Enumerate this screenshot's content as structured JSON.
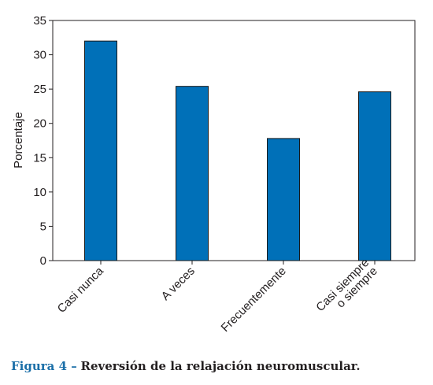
{
  "chart_data": {
    "type": "bar",
    "categories": [
      [
        "Casi nunca"
      ],
      [
        "A veces"
      ],
      [
        "Frecuentemente"
      ],
      [
        "Casi siempre",
        "o siempre"
      ]
    ],
    "values": [
      32,
      25.4,
      17.8,
      24.6
    ],
    "ylabel": "Porcentaje",
    "xlabel": "",
    "ylim": [
      0,
      35
    ],
    "yticks": [
      0,
      5,
      10,
      15,
      20,
      25,
      30,
      35
    ],
    "grid": false,
    "bar_color": "#0070b8",
    "bar_edge_color": "#1a1a1a"
  },
  "caption": {
    "label": "Figura 4 –",
    "text": "Reversión de la relajación neuromuscular."
  }
}
